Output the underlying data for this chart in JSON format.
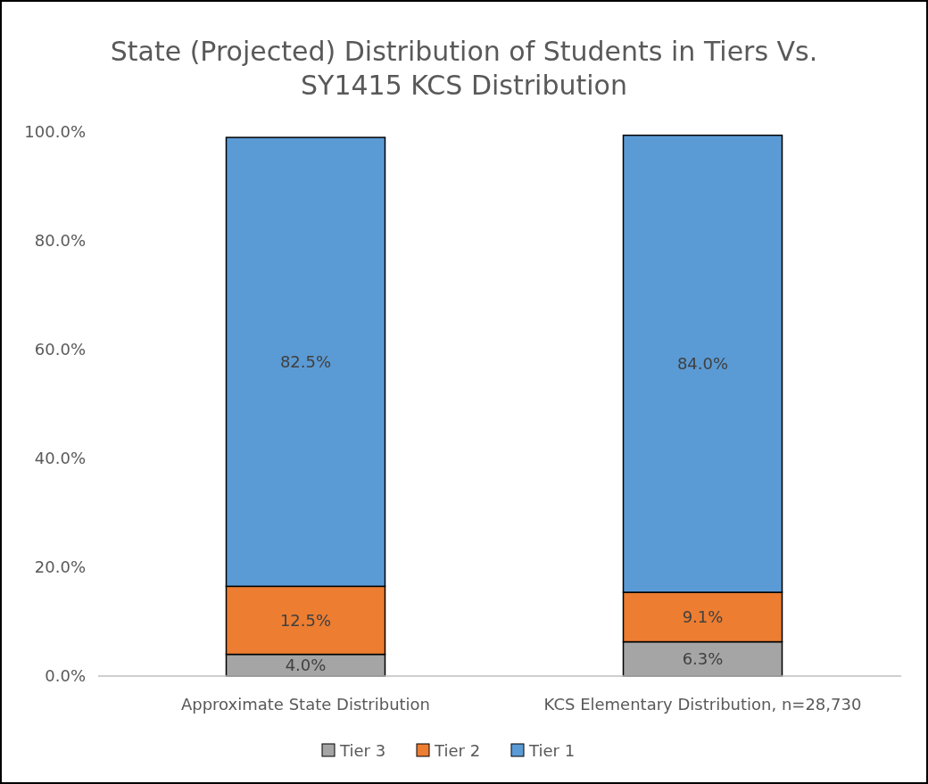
{
  "chart_data": {
    "type": "bar",
    "stacked": true,
    "title": "State (Projected) Distribution of Students in Tiers Vs. SY1415 KCS Distribution",
    "categories": [
      "Approximate State Distribution",
      "KCS Elementary Distribution, n=28,730"
    ],
    "series": [
      {
        "name": "Tier 3",
        "color": "#a5a5a5",
        "values": [
          4.0,
          6.3
        ],
        "value_labels": [
          "4.0%",
          "6.3%"
        ]
      },
      {
        "name": "Tier 2",
        "color": "#ed7d31",
        "values": [
          12.5,
          9.1
        ],
        "value_labels": [
          "12.5%",
          "9.1%"
        ]
      },
      {
        "name": "Tier 1",
        "color": "#5b9bd5",
        "values": [
          82.5,
          84.0
        ],
        "value_labels": [
          "82.5%",
          "84.0%"
        ]
      }
    ],
    "ylim": [
      0,
      100
    ],
    "yticks": [
      {
        "value": 0,
        "label": "0.0%"
      },
      {
        "value": 20,
        "label": "20.0%"
      },
      {
        "value": 40,
        "label": "40.0%"
      },
      {
        "value": 60,
        "label": "60.0%"
      },
      {
        "value": 80,
        "label": "80.0%"
      },
      {
        "value": 100,
        "label": "100.0%"
      }
    ],
    "grid": false,
    "legend": "bottom"
  }
}
